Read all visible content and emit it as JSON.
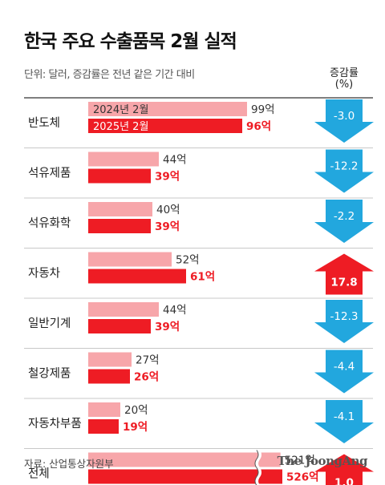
{
  "chart_data": {
    "type": "bar",
    "title": "한국 주요 수출품목 2월 실적",
    "subtitle": "단위: 달러, 증감률은 전년 같은 기간 대비",
    "change_header": [
      "증감률",
      "(%)"
    ],
    "series": [
      {
        "name": "2024년 2월",
        "color": "#f7a6aa"
      },
      {
        "name": "2025년 2월",
        "color": "#ee1c24"
      }
    ],
    "unit_suffix": "억",
    "categories": [
      "반도체",
      "석유제품",
      "석유화학",
      "자동차",
      "일반기계",
      "철강제품",
      "자동차부품",
      "전체"
    ],
    "values_2024": [
      99,
      44,
      40,
      52,
      44,
      27,
      20,
      521
    ],
    "values_2025": [
      96,
      39,
      39,
      61,
      39,
      26,
      19,
      526
    ],
    "change_pct": [
      -3.0,
      -12.2,
      -2.2,
      17.8,
      -12.3,
      -4.4,
      -4.1,
      1.0
    ],
    "change_labels": [
      "-3.0",
      "-12.2",
      "-2.2",
      "17.8",
      "-12.3",
      "-4.4",
      "-4.1",
      "1.0"
    ],
    "colors": {
      "down": "#22a7de",
      "up": "#ee1c24"
    },
    "source": "자료: 산업통상자원부",
    "brand": "The JoongAng"
  }
}
